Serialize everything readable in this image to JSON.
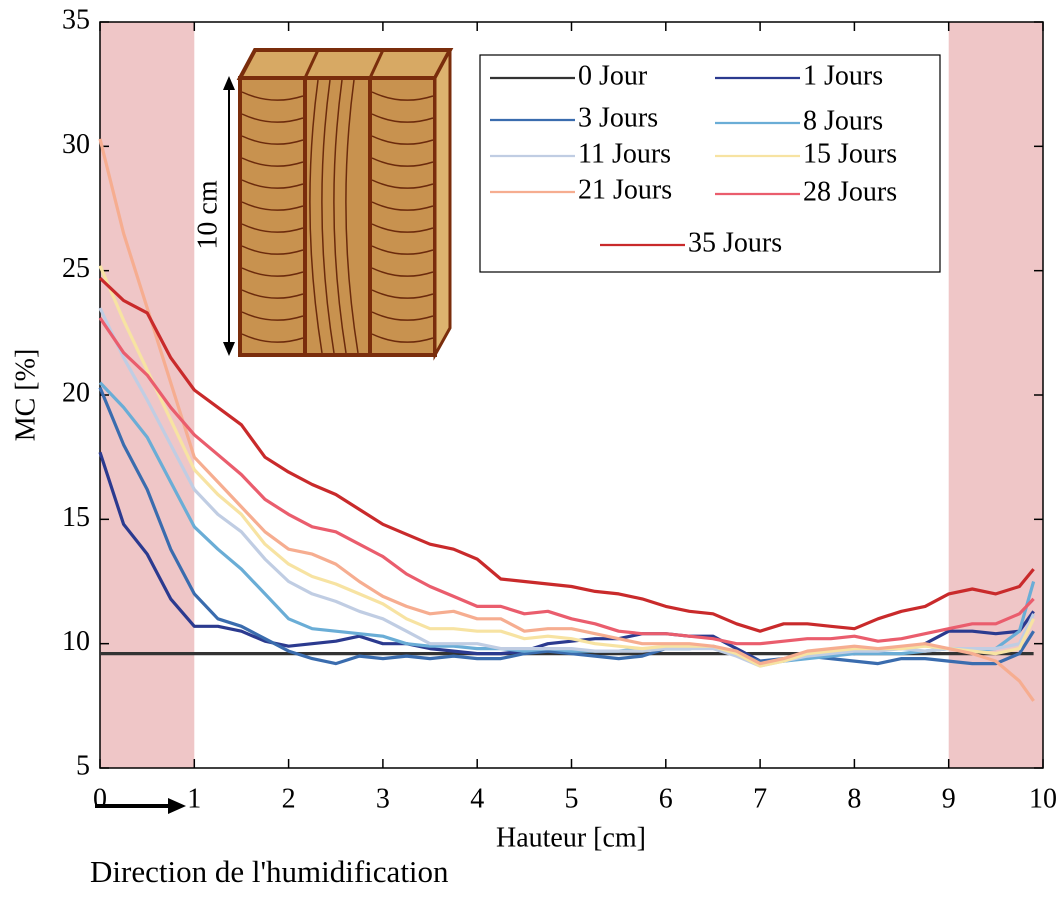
{
  "chart_data": {
    "type": "line",
    "x_label": "Hauteur [cm]",
    "y_label": "MC [%]",
    "annotation": "Direction de l'humidification",
    "inset_label": "10 cm",
    "xlim": [
      0,
      10
    ],
    "ylim": [
      5,
      35
    ],
    "xticks": [
      0,
      1,
      2,
      3,
      4,
      5,
      6,
      7,
      8,
      9,
      10
    ],
    "yticks": [
      5,
      10,
      15,
      20,
      25,
      30,
      35
    ],
    "shaded_regions": [
      [
        0,
        1
      ],
      [
        9,
        10
      ]
    ],
    "shade_color": "#efc6c7",
    "legend": "upper right",
    "x": [
      0,
      0.25,
      0.5,
      0.75,
      1,
      1.25,
      1.5,
      1.75,
      2,
      2.25,
      2.5,
      2.75,
      3,
      3.25,
      3.5,
      3.75,
      4,
      4.25,
      4.5,
      4.75,
      5,
      5.25,
      5.5,
      5.75,
      6,
      6.25,
      6.5,
      6.75,
      7,
      7.25,
      7.5,
      7.75,
      8,
      8.25,
      8.5,
      8.75,
      9,
      9.25,
      9.5,
      9.75,
      9.9
    ],
    "series": [
      {
        "name": "0 Jour",
        "color": "#333333",
        "values": [
          9.6,
          9.6,
          9.6,
          9.6,
          9.6,
          9.6,
          9.6,
          9.6,
          9.6,
          9.6,
          9.6,
          9.6,
          9.6,
          9.6,
          9.6,
          9.6,
          9.6,
          9.6,
          9.6,
          9.6,
          9.6,
          9.6,
          9.6,
          9.6,
          9.6,
          9.6,
          9.6,
          9.6,
          9.6,
          9.6,
          9.6,
          9.6,
          9.6,
          9.6,
          9.6,
          9.6,
          9.6,
          9.6,
          9.6,
          9.6,
          9.6
        ]
      },
      {
        "name": "1 Jours",
        "color": "#2b3a8f",
        "values": [
          17.7,
          14.8,
          13.6,
          11.8,
          10.7,
          10.7,
          10.5,
          10.1,
          9.9,
          10.0,
          10.1,
          10.3,
          10.0,
          10.0,
          9.8,
          9.7,
          9.6,
          9.6,
          9.7,
          10.0,
          10.1,
          10.2,
          10.2,
          10.4,
          10.4,
          10.3,
          10.3,
          9.8,
          9.3,
          9.3,
          9.5,
          9.6,
          9.6,
          9.8,
          9.8,
          10.0,
          10.5,
          10.5,
          10.4,
          10.5,
          11.3
        ]
      },
      {
        "name": "3 Jours",
        "color": "#3a6cae",
        "values": [
          20.3,
          18.0,
          16.2,
          13.8,
          12.0,
          11.0,
          10.7,
          10.2,
          9.7,
          9.4,
          9.2,
          9.5,
          9.4,
          9.5,
          9.4,
          9.5,
          9.4,
          9.4,
          9.6,
          9.7,
          9.6,
          9.5,
          9.4,
          9.5,
          9.8,
          9.8,
          9.9,
          9.6,
          9.3,
          9.4,
          9.5,
          9.4,
          9.3,
          9.2,
          9.4,
          9.4,
          9.3,
          9.2,
          9.2,
          9.6,
          10.5
        ]
      },
      {
        "name": "8 Jours",
        "color": "#6aadd6",
        "values": [
          20.5,
          19.5,
          18.3,
          16.5,
          14.7,
          13.8,
          13.0,
          12.0,
          11.0,
          10.6,
          10.5,
          10.4,
          10.3,
          10.0,
          9.9,
          9.9,
          9.8,
          9.8,
          9.7,
          9.8,
          9.7,
          9.7,
          9.7,
          9.8,
          9.8,
          9.8,
          9.9,
          9.6,
          9.2,
          9.3,
          9.4,
          9.5,
          9.6,
          9.6,
          9.6,
          9.7,
          9.8,
          9.7,
          9.8,
          10.5,
          12.5
        ]
      },
      {
        "name": "11 Jours",
        "color": "#c0cde3",
        "values": [
          23.5,
          21.5,
          19.8,
          18.0,
          16.2,
          15.2,
          14.5,
          13.4,
          12.5,
          12.0,
          11.7,
          11.3,
          11.0,
          10.5,
          10.0,
          10.0,
          10.0,
          9.8,
          9.8,
          9.8,
          9.8,
          9.7,
          9.7,
          9.7,
          9.8,
          9.8,
          9.8,
          9.5,
          9.1,
          9.3,
          9.5,
          9.6,
          9.7,
          9.7,
          9.8,
          9.7,
          9.8,
          9.8,
          9.8,
          10.0,
          11.2
        ]
      },
      {
        "name": "15 Jours",
        "color": "#f7e3a2",
        "values": [
          25.2,
          23.0,
          21.0,
          19.0,
          17.0,
          16.0,
          15.2,
          14.0,
          13.2,
          12.7,
          12.4,
          12.0,
          11.6,
          11.0,
          10.6,
          10.6,
          10.5,
          10.5,
          10.2,
          10.3,
          10.2,
          10.0,
          9.9,
          9.8,
          9.9,
          9.9,
          9.9,
          9.6,
          9.1,
          9.3,
          9.6,
          9.7,
          9.8,
          9.8,
          9.8,
          9.9,
          9.8,
          9.7,
          9.6,
          9.8,
          11.0
        ]
      },
      {
        "name": "21 Jours",
        "color": "#f6ad90",
        "values": [
          30.3,
          26.5,
          23.5,
          20.5,
          17.5,
          16.5,
          15.5,
          14.5,
          13.8,
          13.6,
          13.2,
          12.5,
          11.9,
          11.5,
          11.2,
          11.3,
          11.0,
          11.0,
          10.5,
          10.6,
          10.6,
          10.4,
          10.2,
          10.0,
          10.0,
          10.0,
          9.9,
          9.7,
          9.2,
          9.4,
          9.7,
          9.8,
          9.9,
          9.8,
          9.9,
          10.0,
          9.8,
          9.6,
          9.3,
          8.5,
          7.7
        ]
      },
      {
        "name": "28 Jours",
        "color": "#ea5d6d",
        "values": [
          23.1,
          21.7,
          20.8,
          19.5,
          18.4,
          17.6,
          16.8,
          15.8,
          15.2,
          14.7,
          14.5,
          14.0,
          13.5,
          12.8,
          12.3,
          11.9,
          11.5,
          11.5,
          11.2,
          11.3,
          11.0,
          10.8,
          10.5,
          10.4,
          10.4,
          10.3,
          10.2,
          10.0,
          10.0,
          10.1,
          10.2,
          10.2,
          10.3,
          10.1,
          10.2,
          10.4,
          10.6,
          10.8,
          10.8,
          11.2,
          11.8
        ]
      },
      {
        "name": "35 Jours",
        "color": "#c92a2b",
        "values": [
          24.7,
          23.8,
          23.3,
          21.5,
          20.2,
          19.5,
          18.8,
          17.5,
          16.9,
          16.4,
          16.0,
          15.4,
          14.8,
          14.4,
          14.0,
          13.8,
          13.4,
          12.6,
          12.5,
          12.4,
          12.3,
          12.1,
          12.0,
          11.8,
          11.5,
          11.3,
          11.2,
          10.8,
          10.5,
          10.8,
          10.8,
          10.7,
          10.6,
          11.0,
          11.3,
          11.5,
          12.0,
          12.2,
          12.0,
          12.3,
          13.0
        ]
      }
    ]
  }
}
